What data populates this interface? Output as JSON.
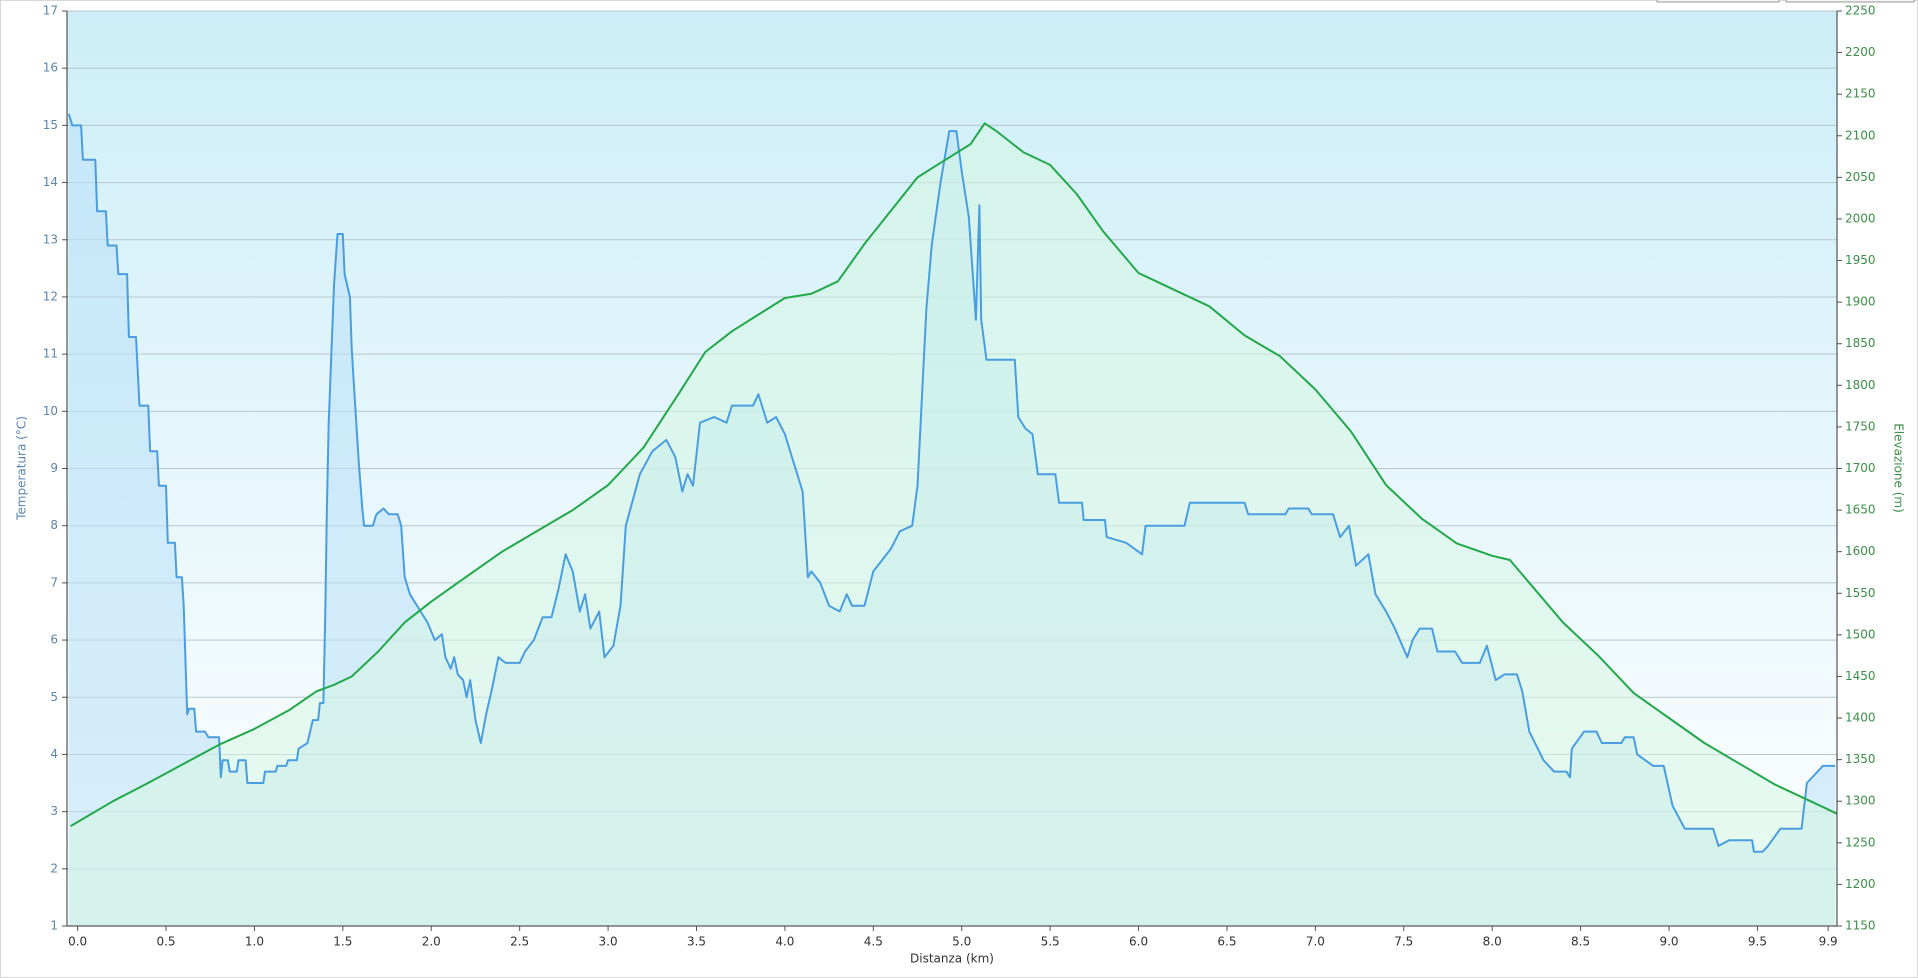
{
  "chart_data": {
    "type": "line",
    "xlabel": "Distanza  (km)",
    "ylabel": "Temperatura (°C)",
    "y2label": "Elevazione (m)",
    "xlim": [
      -0.06,
      9.95
    ],
    "ylim": [
      1,
      17
    ],
    "y2lim": [
      1150,
      2250
    ],
    "grid": true,
    "xticks": [
      {
        "value": 0,
        "label": "0.0"
      },
      0.5,
      {
        "value": 1,
        "label": "1.0"
      },
      1.5,
      {
        "value": 2,
        "label": "2.0"
      },
      2.5,
      {
        "value": 3,
        "label": "3.0"
      },
      3.5,
      {
        "value": 4,
        "label": "4.0"
      },
      4.5,
      {
        "value": 5,
        "label": "5.0"
      },
      5.5,
      {
        "value": 6,
        "label": "6.0"
      },
      6.5,
      {
        "value": 7,
        "label": "7.0"
      },
      7.5,
      {
        "value": 8,
        "label": "8.0"
      },
      8.5,
      {
        "value": 9,
        "label": "9.0"
      },
      9.5,
      9.9
    ],
    "yticks": [
      1,
      2,
      3,
      4,
      5,
      6,
      7,
      8,
      9,
      10,
      11,
      12,
      13,
      14,
      15,
      16,
      17
    ],
    "y2ticks": [
      1150,
      1200,
      1250,
      1300,
      1350,
      1400,
      1450,
      1500,
      1550,
      1600,
      1650,
      1700,
      1750,
      1800,
      1850,
      1900,
      1950,
      2000,
      2050,
      2100,
      2150,
      2200,
      2250
    ],
    "series": [
      {
        "color": "#4a9ee0",
        "fill": "#b9e0f7",
        "axis": "y",
        "x": [
          -0.05,
          -0.03,
          0.02,
          0.03,
          0.1,
          0.11,
          0.16,
          0.17,
          0.22,
          0.23,
          0.28,
          0.29,
          0.33,
          0.35,
          0.4,
          0.41,
          0.45,
          0.46,
          0.5,
          0.51,
          0.55,
          0.56,
          0.59,
          0.6,
          0.62,
          0.63,
          0.66,
          0.67,
          0.72,
          0.74,
          0.8,
          0.81,
          0.82,
          0.85,
          0.86,
          0.9,
          0.91,
          0.95,
          0.96,
          1.05,
          1.06,
          1.12,
          1.13,
          1.18,
          1.19,
          1.24,
          1.25,
          1.3,
          1.33,
          1.36,
          1.37,
          1.39,
          1.4,
          1.41,
          1.42,
          1.45,
          1.47,
          1.5,
          1.51,
          1.54,
          1.55,
          1.57,
          1.59,
          1.61,
          1.62,
          1.67,
          1.69,
          1.73,
          1.76,
          1.81,
          1.83,
          1.85,
          1.88,
          1.92,
          1.98,
          2.02,
          2.06,
          2.08,
          2.11,
          2.13,
          2.15,
          2.18,
          2.2,
          2.22,
          2.25,
          2.28,
          2.31,
          2.34,
          2.38,
          2.42,
          2.5,
          2.53,
          2.58,
          2.63,
          2.68,
          2.72,
          2.76,
          2.8,
          2.84,
          2.87,
          2.9,
          2.95,
          2.98,
          3.03,
          3.07,
          3.1,
          3.18,
          3.25,
          3.33,
          3.38,
          3.42,
          3.45,
          3.48,
          3.52,
          3.6,
          3.67,
          3.7,
          3.82,
          3.85,
          3.9,
          3.95,
          4.0,
          4.05,
          4.1,
          4.13,
          4.15,
          4.2,
          4.25,
          4.31,
          4.35,
          4.38,
          4.45,
          4.5,
          4.55,
          4.6,
          4.65,
          4.72,
          4.75,
          4.8,
          4.83,
          4.88,
          4.93,
          4.97,
          5.0,
          5.04,
          5.08,
          5.1,
          5.11,
          5.14,
          5.3,
          5.32,
          5.36,
          5.4,
          5.43,
          5.53,
          5.55,
          5.68,
          5.69,
          5.81,
          5.82,
          5.93,
          6.02,
          6.04,
          6.26,
          6.29,
          6.6,
          6.62,
          6.83,
          6.85,
          6.96,
          6.98,
          7.1,
          7.14,
          7.19,
          7.23,
          7.3,
          7.34,
          7.4,
          7.45,
          7.52,
          7.55,
          7.59,
          7.66,
          7.69,
          7.79,
          7.83,
          7.93,
          7.97,
          8.02,
          8.07,
          8.14,
          8.17,
          8.21,
          8.29,
          8.35,
          8.42,
          8.44,
          8.45,
          8.52,
          8.59,
          8.62,
          8.73,
          8.75,
          8.8,
          8.82,
          8.91,
          8.97,
          9.02,
          9.09,
          9.25,
          9.28,
          9.34,
          9.47,
          9.48,
          9.53,
          9.56,
          9.63,
          9.75,
          9.78,
          9.87,
          9.94
        ],
        "values": [
          15.2,
          15.0,
          15.0,
          14.4,
          14.4,
          13.5,
          13.5,
          12.9,
          12.9,
          12.4,
          12.4,
          11.3,
          11.3,
          10.1,
          10.1,
          9.3,
          9.3,
          8.7,
          8.7,
          7.7,
          7.7,
          7.1,
          7.1,
          6.6,
          4.7,
          4.8,
          4.8,
          4.4,
          4.4,
          4.3,
          4.3,
          3.6,
          3.9,
          3.9,
          3.7,
          3.7,
          3.9,
          3.9,
          3.5,
          3.5,
          3.7,
          3.7,
          3.8,
          3.8,
          3.9,
          3.9,
          4.1,
          4.2,
          4.6,
          4.6,
          4.9,
          4.9,
          6.4,
          8.3,
          9.8,
          12.2,
          13.1,
          13.1,
          12.4,
          12.0,
          11.1,
          10.1,
          9.1,
          8.3,
          8.0,
          8.0,
          8.2,
          8.3,
          8.2,
          8.2,
          8.0,
          7.1,
          6.8,
          6.6,
          6.3,
          6.0,
          6.1,
          5.7,
          5.5,
          5.7,
          5.4,
          5.3,
          5.0,
          5.3,
          4.6,
          4.2,
          4.7,
          5.1,
          5.7,
          5.6,
          5.6,
          5.8,
          6.0,
          6.4,
          6.4,
          6.9,
          7.5,
          7.2,
          6.5,
          6.8,
          6.2,
          6.5,
          5.7,
          5.9,
          6.6,
          8.0,
          8.9,
          9.3,
          9.5,
          9.2,
          8.6,
          8.9,
          8.7,
          9.8,
          9.9,
          9.8,
          10.1,
          10.1,
          10.3,
          9.8,
          9.9,
          9.6,
          9.1,
          8.6,
          7.1,
          7.2,
          7.0,
          6.6,
          6.5,
          6.8,
          6.6,
          6.6,
          7.2,
          7.4,
          7.6,
          7.9,
          8.0,
          8.7,
          11.8,
          12.9,
          14.0,
          14.9,
          14.9,
          14.2,
          13.4,
          11.6,
          13.6,
          11.6,
          10.9,
          10.9,
          9.9,
          9.7,
          9.6,
          8.9,
          8.9,
          8.4,
          8.4,
          8.1,
          8.1,
          7.8,
          7.7,
          7.5,
          8.0,
          8.0,
          8.4,
          8.4,
          8.2,
          8.2,
          8.3,
          8.3,
          8.2,
          8.2,
          7.8,
          8.0,
          7.3,
          7.5,
          6.8,
          6.5,
          6.2,
          5.7,
          6.0,
          6.2,
          6.2,
          5.8,
          5.8,
          5.6,
          5.6,
          5.9,
          5.3,
          5.4,
          5.4,
          5.1,
          4.4,
          3.9,
          3.7,
          3.7,
          3.6,
          4.1,
          4.4,
          4.4,
          4.2,
          4.2,
          4.3,
          4.3,
          4.0,
          3.8,
          3.8,
          3.1,
          2.7,
          2.7,
          2.4,
          2.5,
          2.5,
          2.3,
          2.3,
          2.4,
          2.7,
          2.7,
          3.5,
          3.8,
          3.8
        ]
      },
      {
        "color": "#22a84a",
        "fill": "#d6f5e2",
        "axis": "y2",
        "x": [
          -0.04,
          0,
          0.2,
          0.4,
          0.6,
          0.8,
          1.0,
          1.2,
          1.35,
          1.45,
          1.55,
          1.7,
          1.85,
          2.0,
          2.2,
          2.4,
          2.6,
          2.8,
          3.0,
          3.2,
          3.4,
          3.55,
          3.7,
          3.85,
          4.0,
          4.15,
          4.3,
          4.45,
          4.6,
          4.75,
          4.9,
          5.05,
          5.13,
          5.2,
          5.35,
          5.5,
          5.65,
          5.8,
          6.0,
          6.2,
          6.4,
          6.6,
          6.8,
          7.0,
          7.2,
          7.4,
          7.6,
          7.8,
          8.0,
          8.1,
          8.2,
          8.4,
          8.6,
          8.8,
          9.0,
          9.2,
          9.4,
          9.6,
          9.8,
          9.95
        ],
        "values": [
          1270,
          1275,
          1300,
          1322,
          1345,
          1368,
          1387,
          1410,
          1432,
          1440,
          1450,
          1480,
          1515,
          1540,
          1570,
          1600,
          1625,
          1650,
          1680,
          1725,
          1790,
          1840,
          1865,
          1885,
          1905,
          1910,
          1925,
          1970,
          2010,
          2050,
          2070,
          2090,
          2115,
          2105,
          2080,
          2065,
          2030,
          1985,
          1935,
          1915,
          1895,
          1860,
          1835,
          1795,
          1745,
          1680,
          1640,
          1610,
          1595,
          1590,
          1565,
          1515,
          1475,
          1430,
          1400,
          1370,
          1345,
          1320,
          1300,
          1285
        ]
      }
    ]
  }
}
